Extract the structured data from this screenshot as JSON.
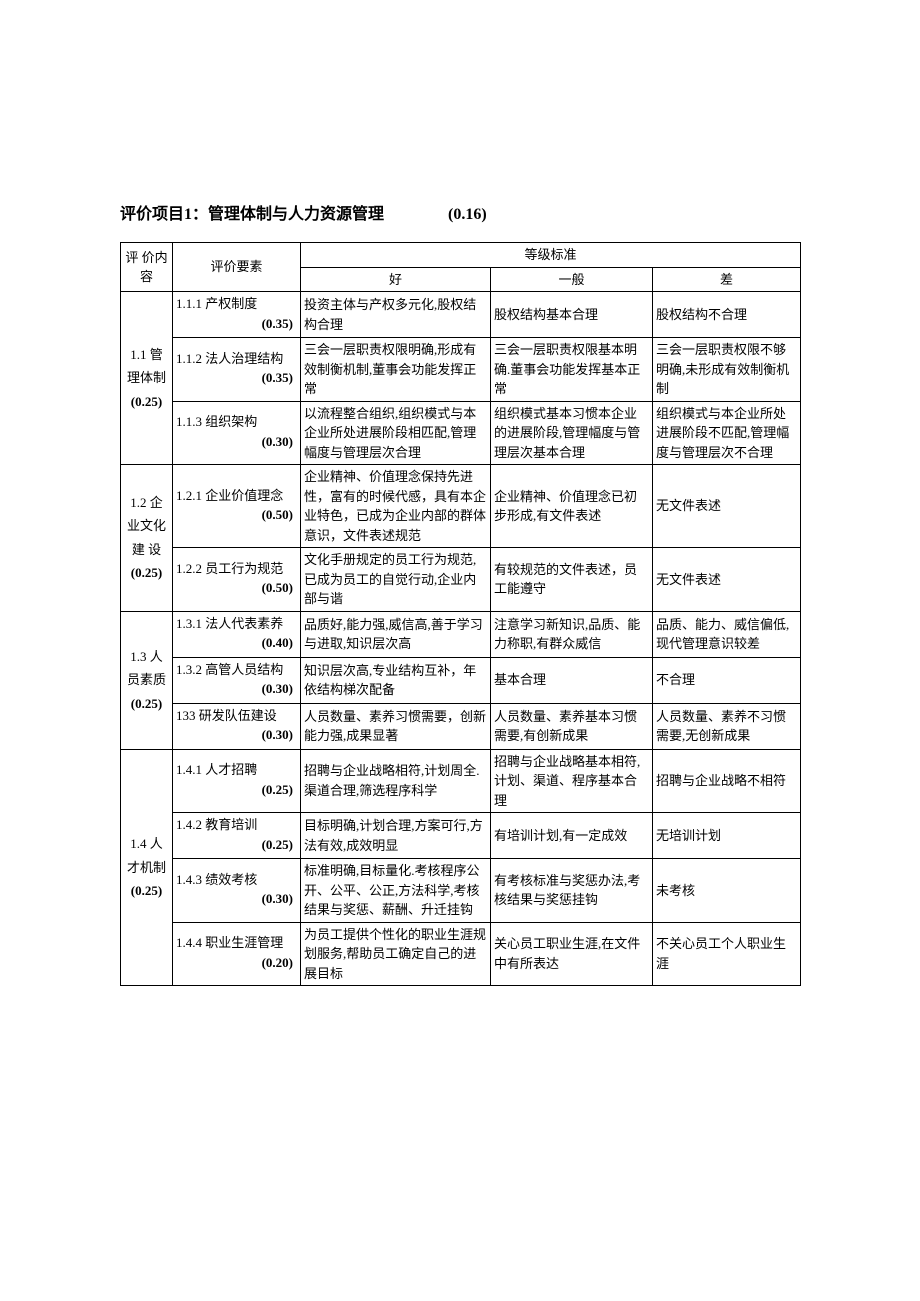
{
  "title_prefix": "评价项目",
  "title_num": "1",
  "title_sep": "：",
  "title_text": "管理体制与人力资源管理",
  "title_weight": "(0.16)",
  "header": {
    "content": "评 价内容",
    "factor": "评价要素",
    "levels": "等级标准",
    "good": "好",
    "avg": "一般",
    "poor": "差"
  },
  "categories": [
    {
      "label": "1.1 管理体制",
      "weight": "(0.25)",
      "rows": [
        {
          "factor": "1.1.1 产权制度",
          "fw": "(0.35)",
          "good": "投资主体与产权多元化,股权结构合理",
          "avg": "股权结构基本合理",
          "poor": "股权结构不合理"
        },
        {
          "factor": "1.1.2 法人治理结构",
          "fw": "(0.35)",
          "good": "三会一层职责权限明确,形成有效制衡机制,董事会功能发挥正常",
          "avg": "三会一层职责权限基本明确.董事会功能发挥基本正常",
          "poor": "三会一层职责权限不够明确,未形成有效制衡机制"
        },
        {
          "factor": "1.1.3 组织架构",
          "fw": "(0.30)",
          "good": "以流程整合组织,组织模式与本企业所处进展阶段相匹配,管理幅度与管理层次合理",
          "avg": "组织模式基本习惯本企业的进展阶段,管理幅度与管理层次基本合理",
          "poor": "组织模式与本企业所处进展阶段不匹配,管理幅度与管理层次不合理"
        }
      ]
    },
    {
      "label": "1.2 企业文化建 设",
      "weight": "(0.25)",
      "rows": [
        {
          "factor": "1.2.1 企业价值理念",
          "fw": "(0.50)",
          "good": "企业精神、价值理念保持先进性，富有的时候代感，具有本企业特色，已成为企业内部的群体意识，文件表述规范",
          "avg": "企业精神、价值理念已初步形成,有文件表述",
          "poor": "无文件表述"
        },
        {
          "factor": "1.2.2 员工行为规范",
          "fw": "(0.50)",
          "good": "文化手册规定的员工行为规范,已成为员工的自觉行动,企业内部与谐",
          "avg": "有较规范的文件表述，员工能遵守",
          "poor": "无文件表述"
        }
      ]
    },
    {
      "label": "1.3 人员素质",
      "weight": "(0.25)",
      "rows": [
        {
          "factor": "1.3.1 法人代表素养",
          "fw": "(0.40)",
          "good": "品质好,能力强,威信高,善于学习与进取,知识层次高",
          "avg": "注意学习新知识,品质、能力称职,有群众威信",
          "poor": "品质、能力、威信偏低,现代管理意识较差"
        },
        {
          "factor": "1.3.2 高管人员结构",
          "fw": "(0.30)",
          "good": "知识层次高,专业结构互补，年依结构梯次配备",
          "avg": "基本合理",
          "poor": "不合理"
        },
        {
          "factor": "133 研发队伍建设",
          "fw": "(0.30)",
          "good": "人员数量、素养习惯需要，创新能力强,成果显著",
          "avg": "人员数量、素养基本习惯需要,有创新成果",
          "poor": "人员数量、素养不习惯需要,无创新成果"
        }
      ]
    },
    {
      "label": "1.4 人才机制",
      "weight": "(0.25)",
      "rows": [
        {
          "factor": "1.4.1 人才招聘",
          "fw": "(0.25)",
          "good": "招聘与企业战略相符,计划周全.渠道合理,筛选程序科学",
          "avg": "招聘与企业战略基本相符,计划、渠道、程序基本合理",
          "poor": "招聘与企业战略不相符"
        },
        {
          "factor": "1.4.2 教育培训",
          "fw": "(0.25)",
          "good": "目标明确,计划合理,方案可行,方法有效,成效明显",
          "avg": "有培训计划,有一定成效",
          "poor": "无培训计划"
        },
        {
          "factor": "1.4.3 绩效考核",
          "fw": "(0.30)",
          "good": "标准明确,目标量化.考核程序公开、公平、公正,方法科学,考核结果与奖惩、薪酬、升迁挂钩",
          "avg": "有考核标准与奖惩办法,考核结果与奖惩挂钩",
          "poor": "未考核"
        },
        {
          "factor": "1.4.4 职业生涯管理",
          "fw": "(0.20)",
          "good": "为员工提供个性化的职业生涯规划服务,帮助员工确定自己的进展目标",
          "avg": "关心员工职业生涯,在文件中有所表达",
          "poor": "不关心员工个人职业生涯"
        }
      ]
    }
  ]
}
